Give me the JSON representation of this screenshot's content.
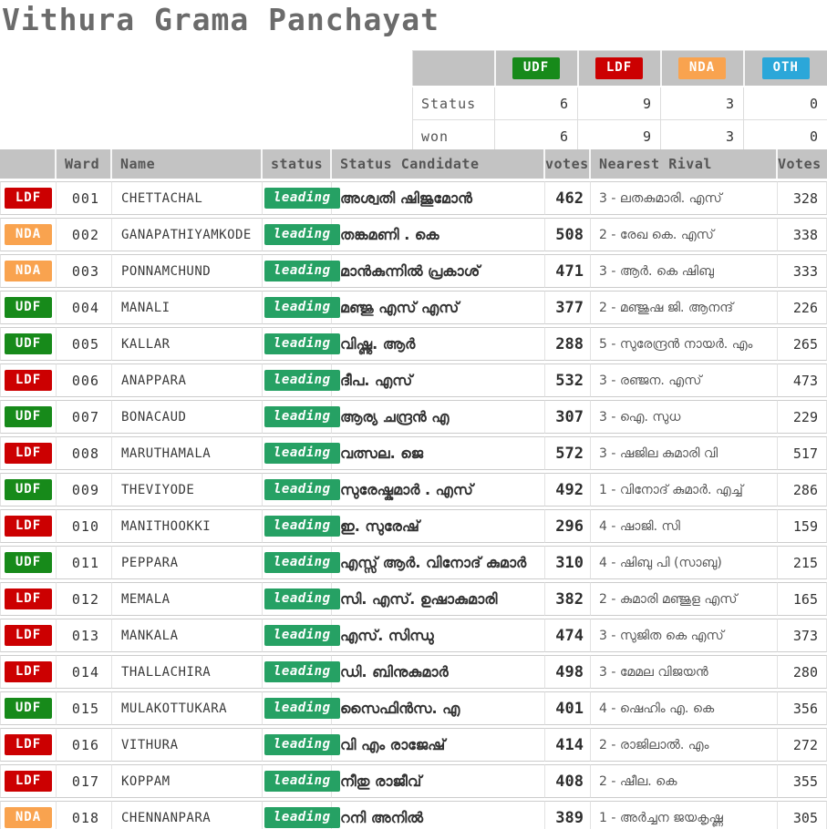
{
  "title": "Vithura Grama Panchayat",
  "colors": {
    "udf": "#178a1a",
    "ldf": "#cc0001",
    "nda": "#f9a34f",
    "oth": "#2ba7d9",
    "leading": "#26a164",
    "header_bg": "#c3c3c3"
  },
  "summary": {
    "corner_label": "",
    "parties": [
      {
        "label": "UDF",
        "color": "#178a1a"
      },
      {
        "label": "LDF",
        "color": "#cc0001"
      },
      {
        "label": "NDA",
        "color": "#f9a34f"
      },
      {
        "label": "OTH",
        "color": "#2ba7d9"
      }
    ],
    "rows": [
      {
        "label": "Status",
        "values": [
          6,
          9,
          3,
          0
        ]
      },
      {
        "label": "won",
        "values": [
          6,
          9,
          3,
          0
        ]
      }
    ]
  },
  "table": {
    "headers": [
      "",
      "Ward",
      "Name",
      "status",
      "Status Candidate",
      "votes",
      "Nearest Rival",
      "Votes"
    ],
    "rows": [
      {
        "party": "LDF",
        "ward": "001",
        "name": "CHETTACHAL",
        "status": "leading",
        "candidate": "അശ്വതി ഷിജുമോൻ",
        "votes": "462",
        "rival": "3 - ലതകുമാരി. എസ്",
        "rival_votes": "328"
      },
      {
        "party": "NDA",
        "ward": "002",
        "name": "GANAPATHIYAMKODE",
        "status": "leading",
        "candidate": "തങ്കമണി . കെ",
        "votes": "508",
        "rival": "2 - രേഖ കെ. എസ്",
        "rival_votes": "338"
      },
      {
        "party": "NDA",
        "ward": "003",
        "name": "PONNAMCHUND",
        "status": "leading",
        "candidate": "മാൻകുന്നിൽ പ്രകാശ്",
        "votes": "471",
        "rival": "3 - ആർ. കെ ഷിബു",
        "rival_votes": "333"
      },
      {
        "party": "UDF",
        "ward": "004",
        "name": "MANALI",
        "status": "leading",
        "candidate": "മഞ്ജു എസ് എസ്",
        "votes": "377",
        "rival": "2 - മഞ്ജുഷ ജി. ആനന്ദ്",
        "rival_votes": "226"
      },
      {
        "party": "UDF",
        "ward": "005",
        "name": "KALLAR",
        "status": "leading",
        "candidate": "വിഷ്ണു. ആർ",
        "votes": "288",
        "rival": "5 - സുരേന്ദ്രൻ നായർ. എം",
        "rival_votes": "265"
      },
      {
        "party": "LDF",
        "ward": "006",
        "name": "ANAPPARA",
        "status": "leading",
        "candidate": "ദീപ. എസ്",
        "votes": "532",
        "rival": "3 - രഞ്ജന. എസ്",
        "rival_votes": "473"
      },
      {
        "party": "UDF",
        "ward": "007",
        "name": "BONACAUD",
        "status": "leading",
        "candidate": "ആര്യ ചന്ദ്രൻ എ",
        "votes": "307",
        "rival": "3 - ഐ. സുധ",
        "rival_votes": "229"
      },
      {
        "party": "LDF",
        "ward": "008",
        "name": "MARUTHAMALA",
        "status": "leading",
        "candidate": "വത്സല. ജെ",
        "votes": "572",
        "rival": "3 - ഷജില കുമാരി വി",
        "rival_votes": "517"
      },
      {
        "party": "UDF",
        "ward": "009",
        "name": "THEVIYODE",
        "status": "leading",
        "candidate": "സുരേഷ്കുമാർ . എസ്",
        "votes": "492",
        "rival": "1 - വിനോദ് കുമാർ. എച്ച്",
        "rival_votes": "286"
      },
      {
        "party": "LDF",
        "ward": "010",
        "name": "MANITHOOKKI",
        "status": "leading",
        "candidate": "ഇ. സുരേഷ്",
        "votes": "296",
        "rival": "4 - ഷാജി. സി",
        "rival_votes": "159"
      },
      {
        "party": "UDF",
        "ward": "011",
        "name": "PEPPARA",
        "status": "leading",
        "candidate": "എസ്സ് ആർ. വിനോദ് കുമാർ",
        "votes": "310",
        "rival": "4 - ഷിബു പി (സാബു)",
        "rival_votes": "215"
      },
      {
        "party": "LDF",
        "ward": "012",
        "name": "MEMALA",
        "status": "leading",
        "candidate": "സി. എസ്. ഉഷാകുമാരി",
        "votes": "382",
        "rival": "2 - കുമാരി മഞ്ജുള എസ്",
        "rival_votes": "165"
      },
      {
        "party": "LDF",
        "ward": "013",
        "name": "MANKALA",
        "status": "leading",
        "candidate": "എസ്. സിന്ധു",
        "votes": "474",
        "rival": "3 - സുജിത കെ എസ്",
        "rival_votes": "373"
      },
      {
        "party": "LDF",
        "ward": "014",
        "name": "THALLACHIRA",
        "status": "leading",
        "candidate": "ഡി. ബിനുകുമാർ",
        "votes": "498",
        "rival": "3 - മേമല വിജയൻ",
        "rival_votes": "280"
      },
      {
        "party": "UDF",
        "ward": "015",
        "name": "MULAKOTTUKARA",
        "status": "leading",
        "candidate": "സൈഫിൻസ. എ",
        "votes": "401",
        "rival": "4 - ഷെഹിം എ. കെ",
        "rival_votes": "356"
      },
      {
        "party": "LDF",
        "ward": "016",
        "name": "VITHURA",
        "status": "leading",
        "candidate": "വി എം രാജേഷ്",
        "votes": "414",
        "rival": "2 - രാജിലാൽ. എം",
        "rival_votes": "272"
      },
      {
        "party": "LDF",
        "ward": "017",
        "name": "KOPPAM",
        "status": "leading",
        "candidate": "നീതു രാജീവ്",
        "votes": "408",
        "rival": "2 - ഷീല. കെ",
        "rival_votes": "355"
      },
      {
        "party": "NDA",
        "ward": "018",
        "name": "CHENNANPARA",
        "status": "leading",
        "candidate": "റനി അനിൽ",
        "votes": "389",
        "rival": "1 - അർച്ചന ജയകൃഷ്ണ",
        "rival_votes": "305"
      }
    ]
  }
}
